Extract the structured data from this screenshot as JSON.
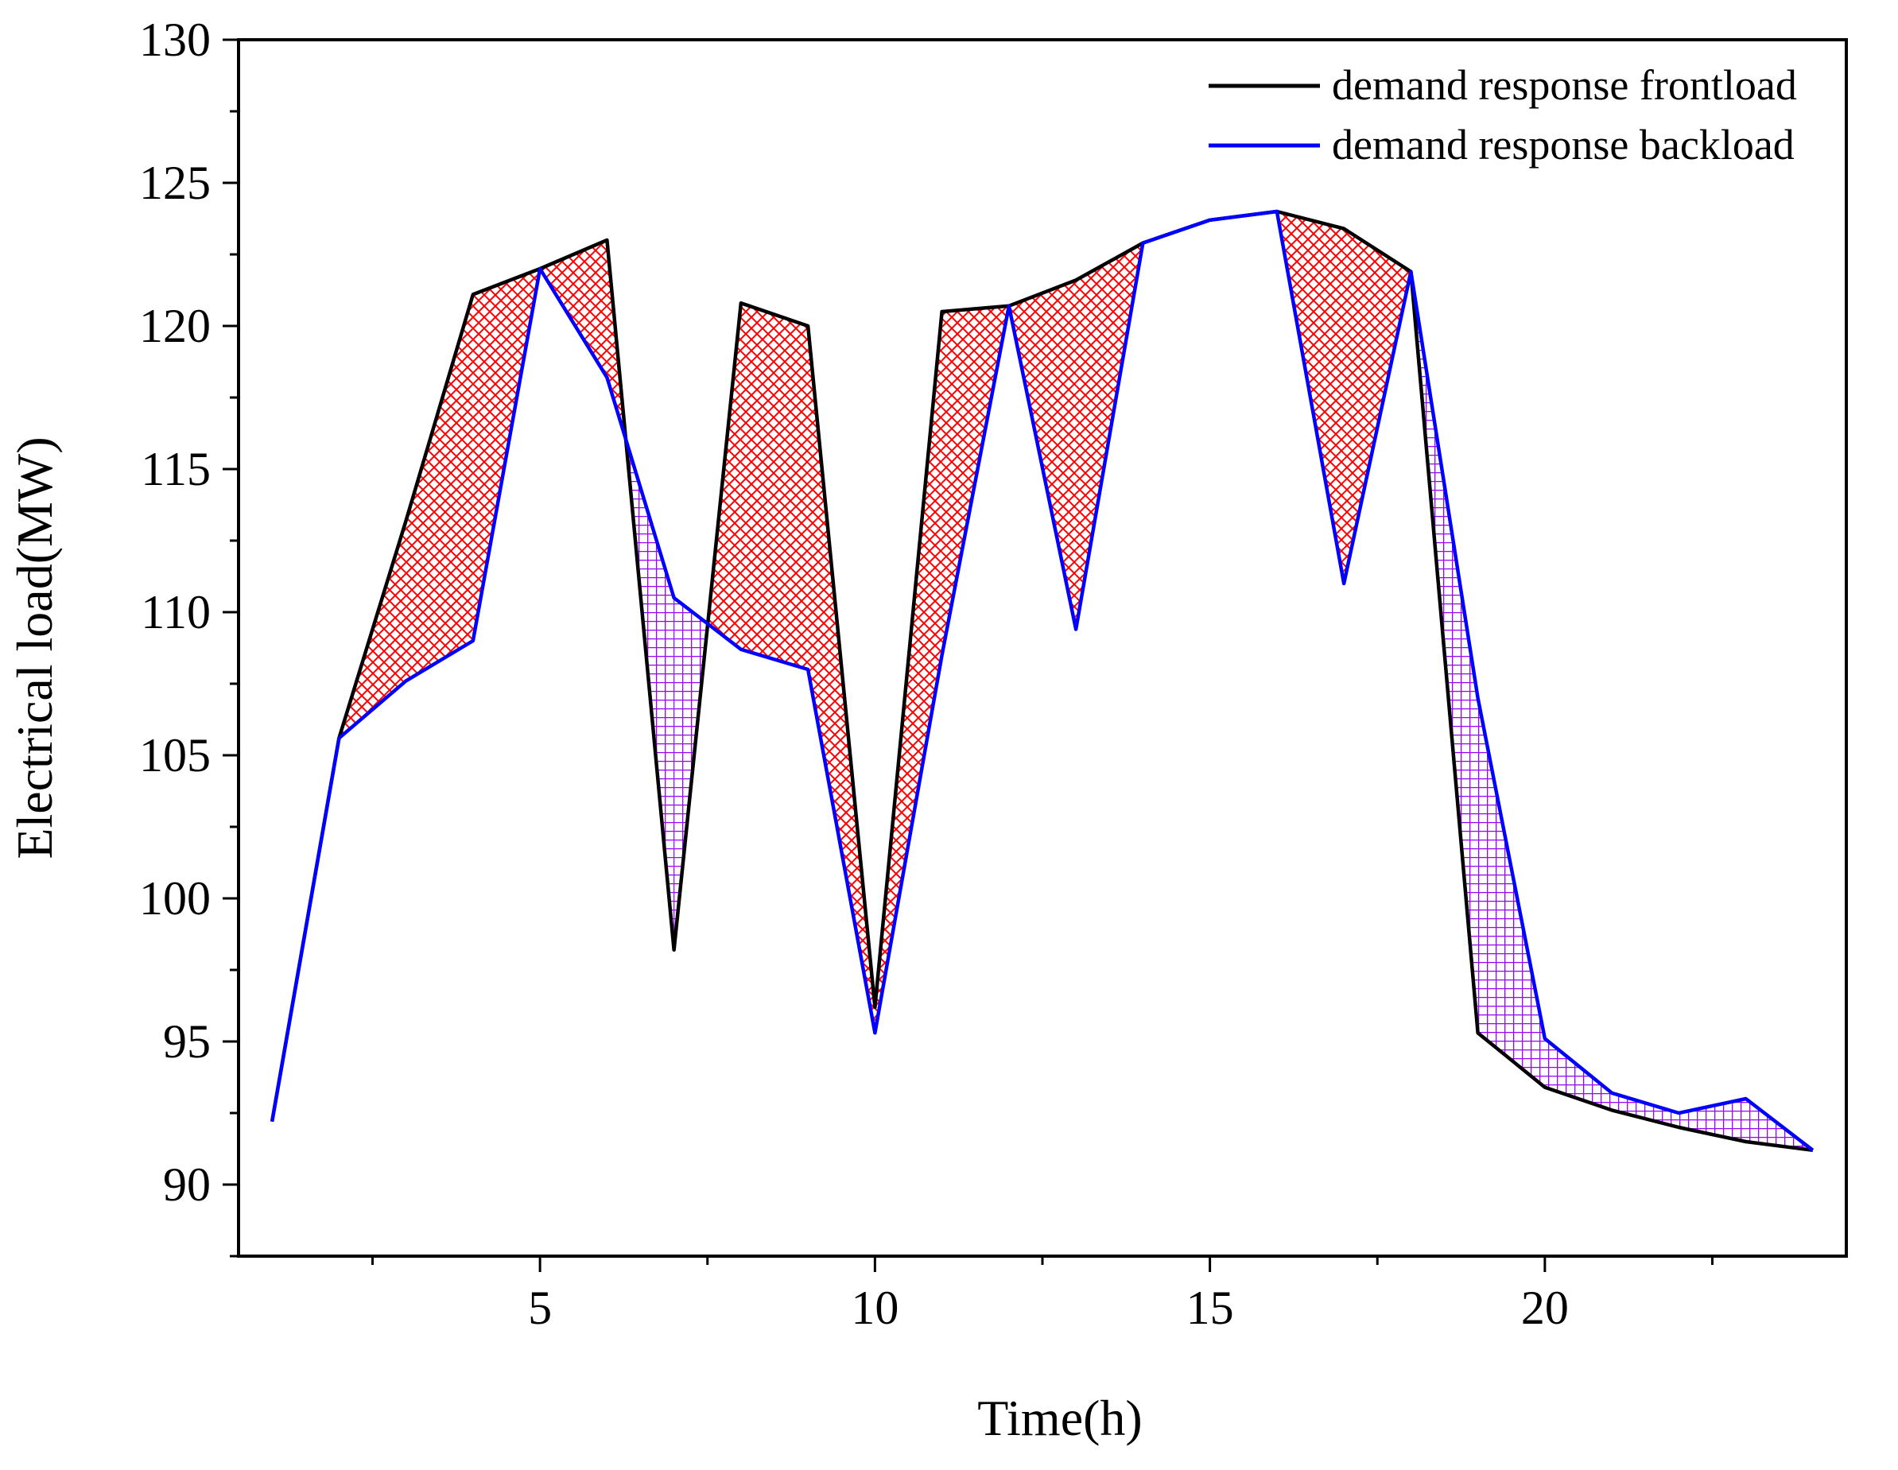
{
  "chart_data": {
    "type": "line",
    "title": "",
    "xlabel": "Time(h)",
    "ylabel": "Electrical load(MW)",
    "xlim": [
      0.5,
      24.5
    ],
    "ylim": [
      87.5,
      130
    ],
    "x_ticks": [
      5,
      10,
      15,
      20
    ],
    "x_tick_labels": [
      "5",
      "10",
      "15",
      "20"
    ],
    "y_ticks": [
      90,
      95,
      100,
      105,
      110,
      115,
      120,
      125,
      130
    ],
    "y_tick_labels": [
      "90",
      "95",
      "100",
      "105",
      "110",
      "115",
      "120",
      "125",
      "130"
    ],
    "legend_position": "top-right",
    "x": [
      1,
      2,
      3,
      4,
      5,
      6,
      7,
      8,
      9,
      10,
      11,
      12,
      13,
      14,
      15,
      16,
      17,
      18,
      19,
      20,
      21,
      22,
      23,
      24
    ],
    "series": [
      {
        "name": "demand response frontload",
        "color": "#000000",
        "values": [
          92.2,
          105.6,
          113.2,
          121.1,
          122.0,
          123.0,
          98.2,
          120.8,
          120.0,
          96.2,
          120.5,
          120.7,
          121.6,
          122.9,
          123.7,
          124.0,
          123.4,
          121.9,
          95.3,
          93.4,
          92.6,
          92.0,
          91.5,
          91.2
        ]
      },
      {
        "name": "demand response backload",
        "color": "#0000ff",
        "values": [
          92.2,
          105.6,
          107.6,
          109.0,
          122.0,
          118.2,
          110.5,
          108.7,
          108.0,
          95.3,
          108.5,
          120.7,
          109.4,
          122.9,
          123.7,
          124.0,
          111.0,
          121.9,
          107.0,
          95.1,
          93.2,
          92.5,
          93.0,
          91.2
        ]
      }
    ],
    "fill_colors": {
      "frontload_higher": "#ff0000",
      "backload_higher": "#9900ff"
    }
  }
}
